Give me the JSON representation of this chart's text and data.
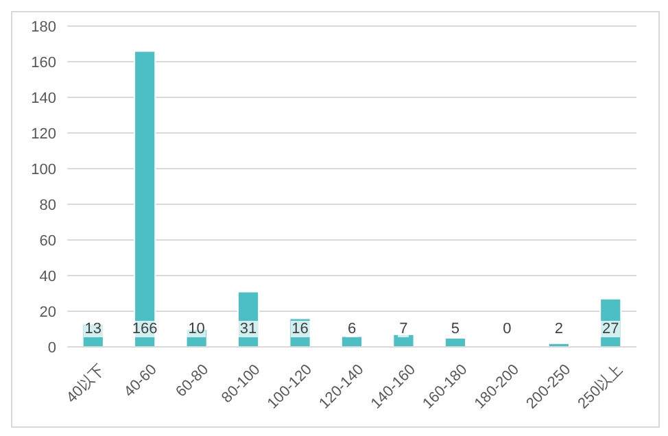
{
  "chart_data": {
    "type": "bar",
    "categories": [
      "40以下",
      "40-60",
      "60-80",
      "80-100",
      "100-120",
      "120-140",
      "140-160",
      "160-180",
      "180-200",
      "200-250",
      "250以上"
    ],
    "values": [
      13,
      166,
      10,
      31,
      16,
      6,
      7,
      5,
      0,
      2,
      27
    ],
    "color": "#4bbfc3",
    "ylim": [
      0,
      180
    ],
    "yticks": [
      0,
      20,
      40,
      60,
      80,
      100,
      120,
      140,
      160,
      180
    ],
    "grid": "y",
    "data_labels": true
  }
}
